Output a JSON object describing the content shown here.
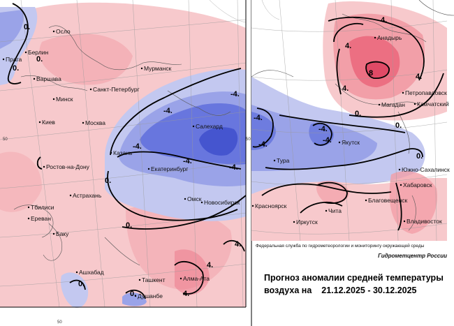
{
  "map": {
    "cities": [
      {
        "id": "oslo",
        "label": "Осло",
        "pos": [
          80,
          48
        ]
      },
      {
        "id": "berlin",
        "label": "Берлин",
        "pos": [
          40,
          78
        ]
      },
      {
        "id": "praga",
        "label": "Прага",
        "pos": [
          8,
          88
        ]
      },
      {
        "id": "varshava",
        "label": "Варшава",
        "pos": [
          52,
          116
        ]
      },
      {
        "id": "minsk",
        "label": "Минск",
        "pos": [
          80,
          145
        ]
      },
      {
        "id": "kiev",
        "label": "Киев",
        "pos": [
          60,
          178
        ]
      },
      {
        "id": "moskva",
        "label": "Москва",
        "pos": [
          122,
          179
        ]
      },
      {
        "id": "spb",
        "label": "Санкт-Петербург",
        "pos": [
          133,
          131
        ]
      },
      {
        "id": "murmansk",
        "label": "Мурманск",
        "pos": [
          206,
          101
        ]
      },
      {
        "id": "kazan",
        "label": "Казань",
        "pos": [
          162,
          222
        ]
      },
      {
        "id": "ekb",
        "label": "Екатеринбург",
        "pos": [
          216,
          245
        ]
      },
      {
        "id": "rostov",
        "label": "Ростов-на-Дону",
        "pos": [
          66,
          242
        ]
      },
      {
        "id": "astrakhan",
        "label": "Астрахань",
        "pos": [
          104,
          283
        ]
      },
      {
        "id": "tbilisi",
        "label": "Тбилиси",
        "pos": [
          44,
          300
        ]
      },
      {
        "id": "erevan",
        "label": "Ереван",
        "pos": [
          44,
          316
        ]
      },
      {
        "id": "baku",
        "label": "Баку",
        "pos": [
          80,
          338
        ]
      },
      {
        "id": "ashkhabad",
        "label": "Ашхабад",
        "pos": [
          113,
          393
        ]
      },
      {
        "id": "tashkent",
        "label": "Ташкент",
        "pos": [
          203,
          404
        ]
      },
      {
        "id": "dushanbe",
        "label": "Душанбе",
        "pos": [
          197,
          427
        ]
      },
      {
        "id": "almaata",
        "label": "Алма-Ата",
        "pos": [
          262,
          402
        ]
      },
      {
        "id": "omsk",
        "label": "Омск",
        "pos": [
          268,
          288
        ]
      },
      {
        "id": "novosibirsk",
        "label": "Новосибирск",
        "pos": [
          292,
          293
        ]
      },
      {
        "id": "salekhard",
        "label": "Салехард",
        "pos": [
          280,
          184
        ]
      },
      {
        "id": "anadyr",
        "label": "Анадырь",
        "pos": [
          540,
          57
        ]
      },
      {
        "id": "petropavlovsk",
        "label": "Петропавловск",
        "pos": [
          580,
          136
        ]
      },
      {
        "id": "kamchatsky",
        "label": "Камчатский",
        "pos": [
          597,
          152
        ]
      },
      {
        "id": "magadan",
        "label": "Магадан",
        "pos": [
          546,
          153
        ]
      },
      {
        "id": "yakutsk",
        "label": "Якутск",
        "pos": [
          489,
          207
        ]
      },
      {
        "id": "tura",
        "label": "Тура",
        "pos": [
          396,
          233
        ]
      },
      {
        "id": "yuzhno",
        "label": "Южно-Сахалинск",
        "pos": [
          575,
          246
        ]
      },
      {
        "id": "khabarovsk",
        "label": "Хабаровск",
        "pos": [
          577,
          268
        ]
      },
      {
        "id": "blagoveshchensk",
        "label": "Благовещенск",
        "pos": [
          527,
          290
        ]
      },
      {
        "id": "chita",
        "label": "Чита",
        "pos": [
          470,
          305
        ]
      },
      {
        "id": "krasnoyarsk",
        "label": "Красноярск",
        "pos": [
          365,
          298
        ]
      },
      {
        "id": "irkutsk",
        "label": "Иркутск",
        "pos": [
          424,
          321
        ]
      },
      {
        "id": "vladivostok",
        "label": "Владивосток",
        "pos": [
          582,
          320
        ]
      }
    ],
    "isolines": [
      {
        "label": "0.",
        "pos": [
          34,
          42
        ]
      },
      {
        "label": "0.",
        "pos": [
          52,
          88
        ]
      },
      {
        "label": "0.",
        "pos": [
          18,
          101
        ]
      },
      {
        "label": "-4.",
        "pos": [
          190,
          213
        ]
      },
      {
        "label": "-4.",
        "pos": [
          234,
          162
        ]
      },
      {
        "label": "-4.",
        "pos": [
          262,
          234
        ]
      },
      {
        "label": "-4.",
        "pos": [
          330,
          138
        ]
      },
      {
        "label": "-4.",
        "pos": [
          328,
          243
        ]
      },
      {
        "label": "0.",
        "pos": [
          150,
          262
        ]
      },
      {
        "label": "0.",
        "pos": [
          180,
          326
        ]
      },
      {
        "label": "0.",
        "pos": [
          112,
          410
        ]
      },
      {
        "label": "4.",
        "pos": [
          336,
          353
        ]
      },
      {
        "label": "4.",
        "pos": [
          296,
          383
        ]
      },
      {
        "label": "4.",
        "pos": [
          262,
          424
        ]
      },
      {
        "label": "0.",
        "pos": [
          186,
          424
        ]
      },
      {
        "label": "4.",
        "pos": [
          545,
          32
        ]
      },
      {
        "label": "4.",
        "pos": [
          494,
          69
        ]
      },
      {
        "label": "8",
        "pos": [
          528,
          108
        ]
      },
      {
        "label": "4.",
        "pos": [
          490,
          130
        ]
      },
      {
        "label": "4.",
        "pos": [
          595,
          113
        ]
      },
      {
        "label": "0.",
        "pos": [
          508,
          166
        ]
      },
      {
        "label": "0.",
        "pos": [
          566,
          183
        ]
      },
      {
        "label": "-4.",
        "pos": [
          363,
          172
        ]
      },
      {
        "label": "-4.",
        "pos": [
          370,
          210
        ]
      },
      {
        "label": "-4.",
        "pos": [
          456,
          188
        ]
      },
      {
        "label": "-4.",
        "pos": [
          462,
          204
        ]
      },
      {
        "label": "0.",
        "pos": [
          596,
          227
        ]
      }
    ],
    "grid_labels": [
      {
        "label": "50",
        "pos": [
          82,
          463
        ]
      },
      {
        "label": "50",
        "pos": [
          4,
          201
        ]
      },
      {
        "label": "50",
        "pos": [
          352,
          201
        ]
      }
    ]
  },
  "legend": {
    "organization": "Федеральная служба по гидрометеорологии и мониторингу окружающей среды",
    "center": "Гидрометцентр России",
    "title_line1": "Прогноз аномалии средней температуры",
    "title_line2_prefix": "воздуха на",
    "period": "21.12.2025 - 30.12.2025"
  },
  "colors": {
    "warm_light": "#f7c9cc",
    "warm_medium": "#f29fa8",
    "warm_strong": "#ec6f82",
    "cold_light": "#c3c8f0",
    "cold_medium": "#9aa3e8",
    "cold_strong": "#5f6fdc",
    "background": "#ffffff"
  }
}
